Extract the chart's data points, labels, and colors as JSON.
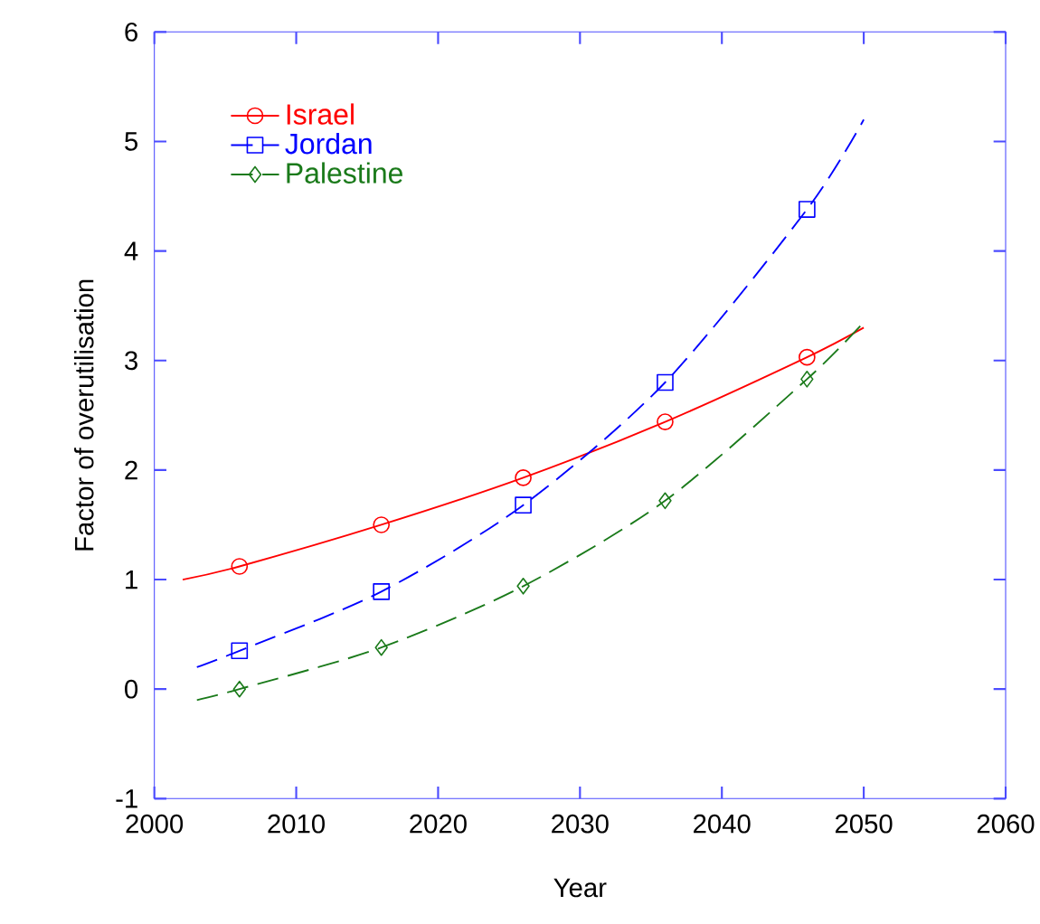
{
  "chart_data": {
    "type": "line",
    "xlabel": "Year",
    "ylabel": "Factor of overutilisation",
    "xlim": [
      2000,
      2060
    ],
    "ylim": [
      -1,
      6
    ],
    "xticks": [
      2000,
      2010,
      2020,
      2030,
      2040,
      2050,
      2060
    ],
    "yticks": [
      -1,
      0,
      1,
      2,
      3,
      4,
      5,
      6
    ],
    "grid": false,
    "legend": "top left",
    "series": [
      {
        "name": "Israel",
        "color": "#ff0000",
        "marker": "circle",
        "line_style": "solid",
        "x": [
          2002,
          2006,
          2016,
          2026,
          2036,
          2046,
          2050
        ],
        "values": [
          1.0,
          1.12,
          1.5,
          1.93,
          2.44,
          3.03,
          3.3
        ]
      },
      {
        "name": "Jordan",
        "color": "#0000ff",
        "marker": "square",
        "line_style": "dashed",
        "x": [
          2003,
          2006,
          2016,
          2026,
          2036,
          2046,
          2050
        ],
        "values": [
          0.2,
          0.35,
          0.89,
          1.68,
          2.8,
          4.38,
          5.2
        ]
      },
      {
        "name": "Palestine",
        "color": "#1a7a1a",
        "marker": "diamond",
        "line_style": "dashed",
        "x": [
          2003,
          2006,
          2016,
          2026,
          2036,
          2046,
          2050
        ],
        "values": [
          -0.1,
          0.0,
          0.38,
          0.94,
          1.72,
          2.83,
          3.35
        ]
      }
    ]
  }
}
